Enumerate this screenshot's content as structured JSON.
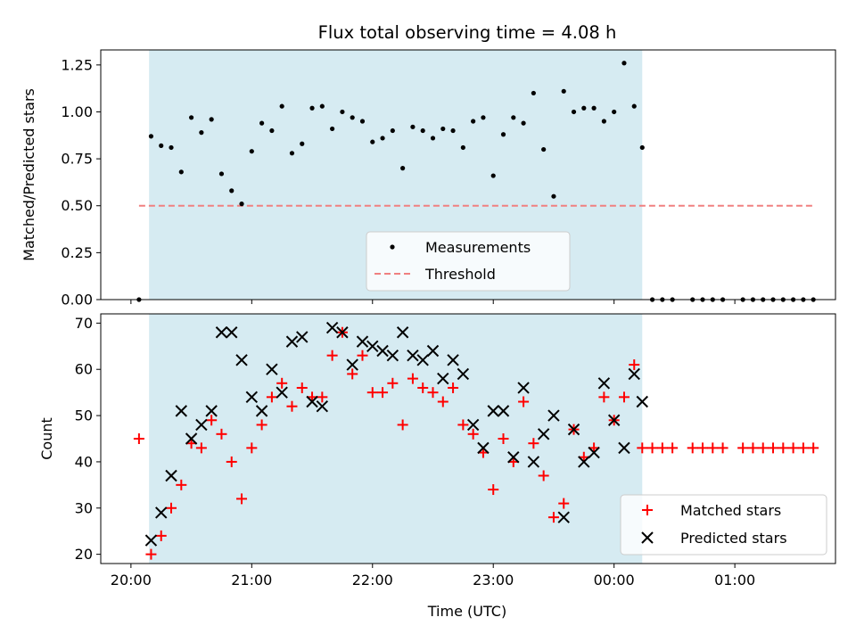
{
  "title": "Flux total observing time = 4.08 h",
  "chart_data": [
    {
      "type": "scatter",
      "ylabel": "Matched/Predicted stars",
      "xlim": [
        "19:45",
        "01:50"
      ],
      "ylim": [
        0,
        1.33
      ],
      "yticks": [
        "0.00",
        "0.25",
        "0.50",
        "0.75",
        "1.00",
        "1.25"
      ],
      "shaded_interval": [
        "20:09",
        "00:14"
      ],
      "legend_position": "lower-center",
      "series": [
        {
          "name": "Measurements",
          "color": "#000000",
          "marker": "dot",
          "x": [
            "20:04",
            "20:10",
            "20:15",
            "20:20",
            "20:25",
            "20:30",
            "20:35",
            "20:40",
            "20:45",
            "20:50",
            "20:55",
            "21:00",
            "21:05",
            "21:10",
            "21:15",
            "21:20",
            "21:25",
            "21:30",
            "21:35",
            "21:40",
            "21:45",
            "21:50",
            "21:55",
            "22:00",
            "22:05",
            "22:10",
            "22:15",
            "22:20",
            "22:25",
            "22:30",
            "22:35",
            "22:40",
            "22:45",
            "22:50",
            "22:55",
            "23:00",
            "23:05",
            "23:10",
            "23:15",
            "23:20",
            "23:25",
            "23:30",
            "23:35",
            "23:40",
            "23:45",
            "23:50",
            "23:55",
            "00:00",
            "00:05",
            "00:10",
            "00:14",
            "00:19",
            "00:24",
            "00:29",
            "00:39",
            "00:44",
            "00:49",
            "00:54",
            "01:04",
            "01:09",
            "01:14",
            "01:19",
            "01:24",
            "01:29",
            "01:34",
            "01:39"
          ],
          "y": [
            0.0,
            0.87,
            0.82,
            0.81,
            0.68,
            0.97,
            0.89,
            0.96,
            0.67,
            0.58,
            0.51,
            0.79,
            0.94,
            0.9,
            1.03,
            0.78,
            0.83,
            1.02,
            1.03,
            0.91,
            1.0,
            0.97,
            0.95,
            0.84,
            0.86,
            0.9,
            0.7,
            0.92,
            0.9,
            0.86,
            0.91,
            0.9,
            0.81,
            0.95,
            0.97,
            0.66,
            0.88,
            0.97,
            0.94,
            1.1,
            0.8,
            0.55,
            1.11,
            1.0,
            1.02,
            1.02,
            0.95,
            1.0,
            1.26,
            1.03,
            0.81,
            0.0,
            0.0,
            0.0,
            0.0,
            0.0,
            0.0,
            0.0,
            0.0,
            0.0,
            0.0,
            0.0,
            0.0,
            0.0,
            0.0,
            0.0
          ]
        },
        {
          "name": "Threshold",
          "color": "#f08080",
          "style": "dashed",
          "x": [
            "20:04",
            "01:39"
          ],
          "y": [
            0.5,
            0.5
          ]
        }
      ]
    },
    {
      "type": "scatter",
      "ylabel": "Count",
      "xlabel": "Time (UTC)",
      "xlim": [
        "19:45",
        "01:50"
      ],
      "ylim": [
        18,
        72
      ],
      "yticks": [
        "20",
        "30",
        "40",
        "50",
        "60",
        "70"
      ],
      "xticks": [
        "20:00",
        "21:00",
        "22:00",
        "23:00",
        "00:00",
        "01:00"
      ],
      "shaded_interval": [
        "20:09",
        "00:14"
      ],
      "legend_position": "lower-right",
      "series": [
        {
          "name": "Matched stars",
          "color": "#ff0000",
          "marker": "plus",
          "x": [
            "20:04",
            "20:10",
            "20:15",
            "20:20",
            "20:25",
            "20:30",
            "20:35",
            "20:40",
            "20:45",
            "20:50",
            "20:55",
            "21:00",
            "21:05",
            "21:10",
            "21:15",
            "21:20",
            "21:25",
            "21:30",
            "21:35",
            "21:40",
            "21:45",
            "21:50",
            "21:55",
            "22:00",
            "22:05",
            "22:10",
            "22:15",
            "22:20",
            "22:25",
            "22:30",
            "22:35",
            "22:40",
            "22:45",
            "22:50",
            "22:55",
            "23:00",
            "23:05",
            "23:10",
            "23:15",
            "23:20",
            "23:25",
            "23:30",
            "23:35",
            "23:40",
            "23:45",
            "23:50",
            "23:55",
            "00:00",
            "00:05",
            "00:10",
            "00:14",
            "00:19",
            "00:24",
            "00:29",
            "00:39",
            "00:44",
            "00:49",
            "00:54",
            "01:04",
            "01:09",
            "01:14",
            "01:19",
            "01:24",
            "01:29",
            "01:34",
            "01:39"
          ],
          "y": [
            45,
            20,
            24,
            30,
            35,
            44,
            43,
            49,
            46,
            40,
            32,
            43,
            48,
            54,
            57,
            52,
            56,
            54,
            54,
            63,
            68,
            59,
            63,
            55,
            55,
            57,
            48,
            58,
            56,
            55,
            53,
            56,
            48,
            46,
            42,
            34,
            45,
            40,
            53,
            44,
            37,
            28,
            31,
            47,
            41,
            43,
            54,
            49,
            54,
            61,
            43,
            43,
            43,
            43,
            43,
            43,
            43,
            43,
            43,
            43,
            43,
            43,
            43,
            43,
            43,
            43
          ]
        },
        {
          "name": "Predicted stars",
          "color": "#000000",
          "marker": "x",
          "x": [
            "20:10",
            "20:15",
            "20:20",
            "20:25",
            "20:30",
            "20:35",
            "20:40",
            "20:45",
            "20:50",
            "20:55",
            "21:00",
            "21:05",
            "21:10",
            "21:15",
            "21:20",
            "21:25",
            "21:30",
            "21:35",
            "21:40",
            "21:45",
            "21:50",
            "21:55",
            "22:00",
            "22:05",
            "22:10",
            "22:15",
            "22:20",
            "22:25",
            "22:30",
            "22:35",
            "22:40",
            "22:45",
            "22:50",
            "22:55",
            "23:00",
            "23:05",
            "23:10",
            "23:15",
            "23:20",
            "23:25",
            "23:30",
            "23:35",
            "23:40",
            "23:45",
            "23:50",
            "23:55",
            "00:00",
            "00:05",
            "00:10",
            "00:14"
          ],
          "y": [
            23,
            29,
            37,
            51,
            45,
            48,
            51,
            68,
            68,
            62,
            54,
            51,
            60,
            55,
            66,
            67,
            53,
            52,
            69,
            68,
            61,
            66,
            65,
            64,
            63,
            68,
            63,
            62,
            64,
            58,
            62,
            59,
            48,
            43,
            51,
            51,
            41,
            56,
            40,
            46,
            50,
            28,
            47,
            40,
            42,
            57,
            49,
            43,
            59,
            53
          ]
        }
      ]
    }
  ]
}
